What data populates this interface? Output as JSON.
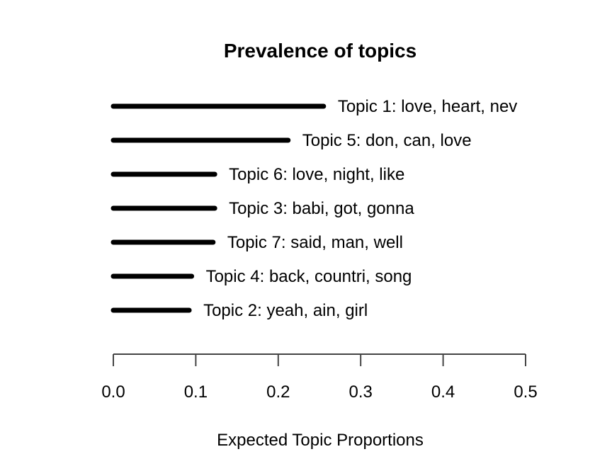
{
  "chart_data": {
    "type": "bar",
    "orientation": "horizontal",
    "title": "Prevalence of topics",
    "xlabel": "Expected Topic Proportions",
    "ylabel": "",
    "xlim": [
      0,
      0.5
    ],
    "xticks": [
      "0.0",
      "0.1",
      "0.2",
      "0.3",
      "0.4",
      "0.5"
    ],
    "grid": false,
    "series": [
      {
        "categories": [
          "Topic 1: love, heart, nev",
          "Topic 5: don, can, love",
          "Topic 6: love, night, like",
          "Topic 3: babi, got, gonna",
          "Topic 7: said, man, well",
          "Topic 4: back, countri, song",
          "Topic 2: yeah, ain, girl"
        ],
        "values": [
          0.255,
          0.212,
          0.123,
          0.123,
          0.121,
          0.095,
          0.092
        ]
      }
    ],
    "bar_color": "#000000"
  }
}
